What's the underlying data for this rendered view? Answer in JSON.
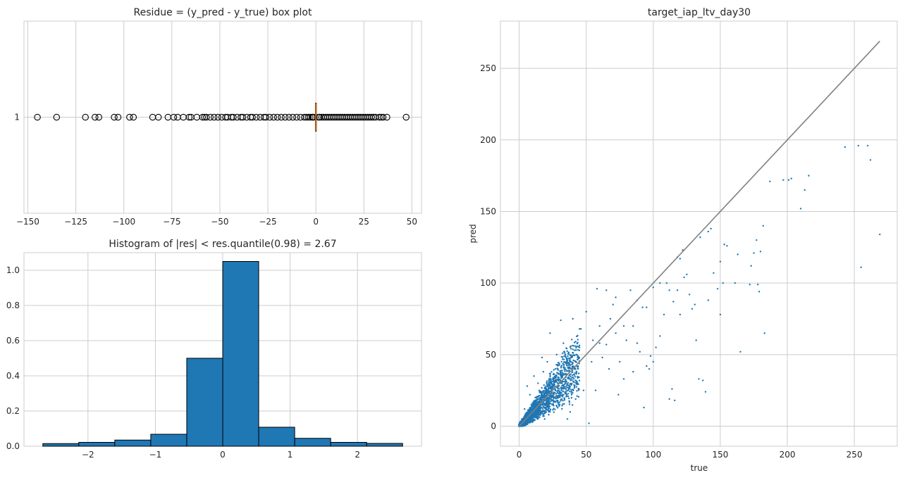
{
  "chart_data": [
    {
      "type": "box",
      "title": "Residue = (y_pred - y_true) box plot",
      "xlim": [
        -152,
        55
      ],
      "xticks": [
        -150,
        -125,
        -100,
        -75,
        -50,
        -25,
        0,
        25,
        50
      ],
      "ytick_labels": [
        "1"
      ],
      "grid": true,
      "box": {
        "category": "1",
        "q1": -0.25,
        "median": 0.0,
        "q3": 0.25,
        "whisker_low": -0.8,
        "whisker_high": 0.9
      },
      "outliers": [
        -145,
        -135,
        -120,
        -115,
        -113,
        -105,
        -103,
        -97,
        -95,
        -85,
        -82,
        -77,
        -74,
        -72,
        -69,
        -66,
        -65,
        -62,
        -59,
        -58,
        -57,
        -55,
        -53,
        -51,
        -49,
        -47,
        -46,
        -44,
        -43,
        -41,
        -39,
        -38,
        -36,
        -34,
        -33,
        -31,
        -29,
        -27,
        -26,
        -24,
        -22,
        -20,
        -18,
        -16,
        -14,
        -12,
        -10,
        -8,
        -6,
        -5,
        -4,
        -3,
        -2,
        -1.5,
        -1.2,
        1.5,
        2,
        3,
        4,
        5,
        6,
        7,
        8,
        9,
        10,
        11,
        12,
        13,
        14,
        15,
        16,
        17,
        18,
        19,
        20,
        21,
        22,
        23,
        24,
        25,
        26,
        27,
        28,
        29,
        30,
        31,
        33,
        34,
        35,
        37,
        47
      ]
    },
    {
      "type": "bar",
      "title": "Histogram of |res| < res.quantile(0.98) = 2.67",
      "xlim": [
        -2.95,
        2.95
      ],
      "ylim": [
        0,
        1.1
      ],
      "xticks": [
        -2,
        -1,
        0,
        1,
        2
      ],
      "yticks": [
        0.0,
        0.2,
        0.4,
        0.6,
        0.8,
        1.0
      ],
      "grid": true,
      "bin_edges": [
        -2.67,
        -2.136,
        -1.602,
        -1.068,
        -0.534,
        0.0,
        0.534,
        1.068,
        1.602,
        2.136,
        2.67
      ],
      "values": [
        0.015,
        0.022,
        0.035,
        0.068,
        0.5,
        1.05,
        0.108,
        0.045,
        0.022,
        0.016
      ]
    },
    {
      "type": "scatter",
      "title": "target_iap_ltv_day30",
      "xlabel": "true",
      "ylabel": "pred",
      "xlim": [
        -14,
        282
      ],
      "ylim": [
        -14,
        283
      ],
      "xticks": [
        0,
        50,
        100,
        150,
        200,
        250
      ],
      "yticks": [
        0,
        50,
        100,
        150,
        200,
        250
      ],
      "grid": true,
      "reference_line": {
        "x": [
          0,
          269
        ],
        "y": [
          0,
          269
        ],
        "color": "#808080"
      },
      "color": "#1f77b4",
      "points": [
        [
          243,
          195
        ],
        [
          253,
          196
        ],
        [
          260,
          196
        ],
        [
          262,
          186
        ],
        [
          269,
          134
        ],
        [
          255,
          111
        ],
        [
          197,
          172
        ],
        [
          201,
          172
        ],
        [
          203,
          173
        ],
        [
          216,
          175
        ],
        [
          210,
          152
        ],
        [
          213,
          165
        ],
        [
          187,
          171
        ],
        [
          180,
          122
        ],
        [
          182,
          140
        ],
        [
          183,
          65
        ],
        [
          175,
          121
        ],
        [
          177,
          130
        ],
        [
          178,
          99
        ],
        [
          179,
          94
        ],
        [
          173,
          112
        ],
        [
          172,
          99
        ],
        [
          165,
          52
        ],
        [
          163,
          120
        ],
        [
          161,
          100
        ],
        [
          155,
          126
        ],
        [
          153,
          127
        ],
        [
          150,
          115
        ],
        [
          152,
          100
        ],
        [
          150,
          78
        ],
        [
          148,
          96
        ],
        [
          141,
          136
        ],
        [
          143,
          138
        ],
        [
          145,
          107
        ],
        [
          141,
          88
        ],
        [
          139,
          24
        ],
        [
          137,
          32
        ],
        [
          135,
          132
        ],
        [
          131,
          85
        ],
        [
          129,
          82
        ],
        [
          132,
          60
        ],
        [
          134,
          33
        ],
        [
          122,
          123
        ],
        [
          120,
          117
        ],
        [
          118,
          95
        ],
        [
          115,
          87
        ],
        [
          114,
          26
        ],
        [
          112,
          19
        ],
        [
          116,
          18
        ],
        [
          125,
          106
        ],
        [
          127,
          92
        ],
        [
          123,
          104
        ],
        [
          110,
          100
        ],
        [
          105,
          100
        ],
        [
          100,
          97
        ],
        [
          98,
          49
        ],
        [
          102,
          55
        ],
        [
          100,
          45
        ],
        [
          97,
          40
        ],
        [
          95,
          42
        ],
        [
          92,
          83
        ],
        [
          90,
          52
        ],
        [
          88,
          58
        ],
        [
          85,
          70
        ],
        [
          83,
          95
        ],
        [
          80,
          60
        ],
        [
          78,
          33
        ],
        [
          75,
          45
        ],
        [
          72,
          65
        ],
        [
          70,
          85
        ],
        [
          68,
          75
        ],
        [
          65,
          57
        ],
        [
          62,
          48
        ],
        [
          60,
          70
        ],
        [
          58,
          96
        ],
        [
          55,
          60
        ],
        [
          54,
          45
        ],
        [
          52,
          2
        ],
        [
          50,
          80
        ],
        [
          48,
          25
        ],
        [
          46,
          68
        ],
        [
          45,
          55
        ],
        [
          44,
          40
        ],
        [
          42,
          32
        ],
        [
          40,
          75
        ],
        [
          38,
          10
        ],
        [
          36,
          5
        ],
        [
          35,
          48
        ],
        [
          33,
          58
        ],
        [
          32,
          30
        ],
        [
          31,
          74
        ],
        [
          30,
          15
        ],
        [
          28,
          50
        ],
        [
          27,
          40
        ],
        [
          25,
          33
        ],
        [
          24,
          20
        ],
        [
          23,
          65
        ],
        [
          22,
          8
        ],
        [
          21,
          45
        ],
        [
          20,
          28
        ],
        [
          19,
          5
        ],
        [
          18,
          38
        ],
        [
          17,
          48
        ],
        [
          16,
          15
        ],
        [
          15,
          25
        ],
        [
          14,
          30
        ],
        [
          13,
          8
        ],
        [
          12,
          20
        ],
        [
          11,
          35
        ],
        [
          10,
          3
        ],
        [
          9,
          15
        ],
        [
          8,
          22
        ],
        [
          7,
          10
        ],
        [
          6,
          28
        ],
        [
          5,
          6
        ],
        [
          4,
          12
        ],
        [
          3,
          2
        ],
        [
          2,
          5
        ],
        [
          1,
          1
        ],
        [
          0.5,
          3
        ],
        [
          0,
          0
        ],
        [
          65,
          95
        ],
        [
          72,
          90
        ],
        [
          78,
          70
        ],
        [
          85,
          38
        ],
        [
          93,
          13
        ],
        [
          105,
          63
        ],
        [
          108,
          78
        ],
        [
          112,
          95
        ],
        [
          118,
          118
        ],
        [
          120,
          78
        ],
        [
          95,
          83
        ],
        [
          88,
          88
        ],
        [
          60,
          58
        ],
        [
          57,
          25
        ],
        [
          67,
          40
        ],
        [
          74,
          22
        ]
      ]
    }
  ]
}
